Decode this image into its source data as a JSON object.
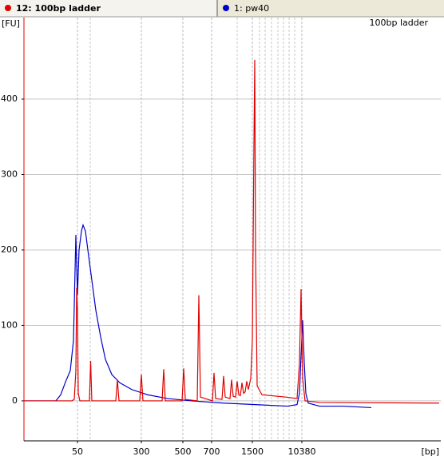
{
  "chart_data": {
    "type": "line",
    "annotation": "100bp ladder",
    "ylabel": "[FU]",
    "xlabel": "[bp]",
    "xlim": [
      20,
      124.4
    ],
    "ylim": [
      -53,
      508
    ],
    "yticks": [
      0,
      100,
      200,
      300,
      400
    ],
    "xticks": [
      {
        "value": 33.4,
        "label": "50"
      },
      {
        "value": 49.4,
        "label": "300"
      },
      {
        "value": 59.8,
        "label": "500"
      },
      {
        "value": 67,
        "label": "700"
      },
      {
        "value": 77.2,
        "label": "1500"
      },
      {
        "value": 89.6,
        "label": "10380"
      }
    ],
    "xminor": [
      36.6,
      73.4,
      79,
      80.4,
      82,
      83.6,
      85,
      86.4,
      87.8
    ],
    "grid": true,
    "series": [
      {
        "name": "12: 100bp ladder",
        "color": "#e00000",
        "x": [
          20,
          32,
          32.6,
          33,
          33.2,
          33.4,
          33.6,
          34,
          36.4,
          36.7,
          37,
          43,
          43.4,
          43.8,
          49,
          49.4,
          49.8,
          54.6,
          55,
          55.4,
          59.6,
          60,
          60.4,
          63.4,
          63.8,
          64.2,
          67.2,
          67.6,
          68,
          69.6,
          70,
          70.4,
          71.6,
          72,
          72.4,
          73,
          73.4,
          73.8,
          74.2,
          74.6,
          75,
          75.4,
          75.8,
          76.2,
          76.8,
          77.2,
          77.6,
          77.8,
          78,
          78.4,
          79.6,
          85.6,
          88.4,
          89,
          89.4,
          89.8,
          90.4,
          94,
          124
        ],
        "values": [
          0,
          0,
          2,
          40,
          150,
          120,
          10,
          0,
          0,
          53,
          0,
          0,
          28,
          0,
          0,
          35,
          0,
          0,
          42,
          0,
          0,
          43,
          2,
          0,
          140,
          5,
          0,
          37,
          3,
          2,
          33,
          5,
          3,
          28,
          6,
          5,
          26,
          8,
          7,
          24,
          10,
          12,
          26,
          15,
          30,
          80,
          340,
          452,
          200,
          20,
          8,
          5,
          3,
          50,
          148,
          30,
          0,
          -2,
          -3
        ]
      },
      {
        "name": "1: pw40",
        "color": "#0000cc",
        "x": [
          20,
          28,
          29.2,
          30.4,
          31.6,
          32.4,
          33,
          33.4,
          33.8,
          34.4,
          34.8,
          35.4,
          36,
          37,
          38,
          39.2,
          40.4,
          42,
          44,
          47,
          51,
          56,
          62,
          70,
          78,
          86,
          88.4,
          89,
          89.4,
          89.8,
          90.2,
          90.6,
          91.2,
          94,
          100,
          107
        ],
        "values": [
          0,
          0,
          8,
          25,
          40,
          80,
          220,
          140,
          200,
          225,
          233,
          225,
          200,
          160,
          120,
          85,
          55,
          35,
          24,
          15,
          8,
          3,
          0,
          -3,
          -5,
          -7,
          -5,
          10,
          60,
          107,
          50,
          10,
          -3,
          -7,
          -7,
          -9
        ]
      }
    ]
  }
}
